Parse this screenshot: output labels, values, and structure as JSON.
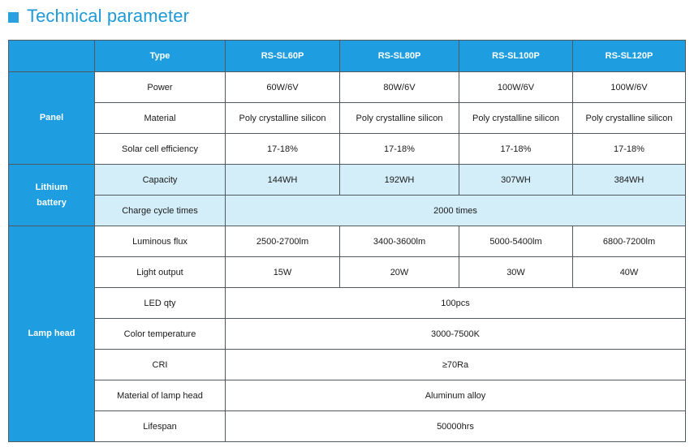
{
  "title": "Technical parameter",
  "header": {
    "corner": "",
    "type_label": "Type",
    "models": [
      "RS-SL60P",
      "RS-SL80P",
      "RS-SL100P",
      "RS-SL120P"
    ]
  },
  "panel": {
    "group_label": "Panel",
    "rows": [
      {
        "label": "Power",
        "values": [
          "60W/6V",
          "80W/6V",
          "100W/6V",
          "100W/6V"
        ]
      },
      {
        "label": "Material",
        "values": [
          "Poly crystalline silicon",
          "Poly crystalline silicon",
          "Poly crystalline silicon",
          "Poly crystalline silicon"
        ]
      },
      {
        "label": "Solar cell efficiency",
        "values": [
          "17-18%",
          "17-18%",
          "17-18%",
          "17-18%"
        ]
      }
    ]
  },
  "battery": {
    "group_label_line1": "Lithium",
    "group_label_line2": "battery",
    "capacity": {
      "label": "Capacity",
      "values": [
        "144WH",
        "192WH",
        "307WH",
        "384WH"
      ]
    },
    "charge_cycles": {
      "label": "Charge cycle times",
      "value": "2000 times"
    }
  },
  "lamp_head": {
    "group_label": "Lamp head",
    "luminous_flux": {
      "label": "Luminous flux",
      "values": [
        "2500-2700lm",
        "3400-3600lm",
        "5000-5400lm",
        "6800-7200lm"
      ]
    },
    "light_output": {
      "label": "Light output",
      "values": [
        "15W",
        "20W",
        "30W",
        "40W"
      ]
    },
    "led_qty": {
      "label": "LED qty",
      "value": "100pcs"
    },
    "color_temperature": {
      "label": "Color temperature",
      "value": "3000-7500K"
    },
    "cri": {
      "label": "CRI",
      "value": "≥70Ra"
    },
    "material": {
      "label": "Material of lamp head",
      "value": "Aluminum alloy"
    },
    "lifespan": {
      "label": "Lifespan",
      "value": "50000hrs"
    }
  },
  "colors": {
    "accent": "#1e9ee0",
    "battery_row": "#d4eef9",
    "title": "#1e9ad8",
    "border": "#505a60"
  }
}
